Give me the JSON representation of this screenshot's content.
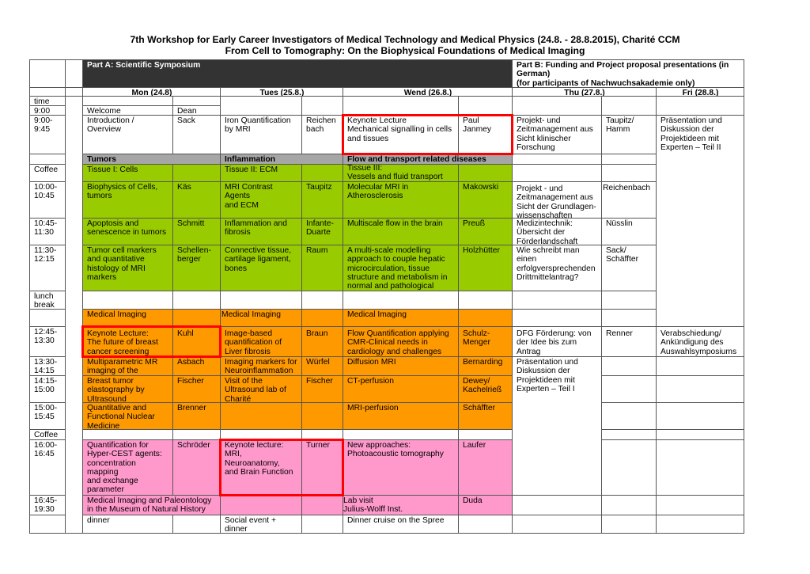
{
  "title": {
    "line1": "7th Workshop for Early Career Investigators of Medical Technology and Medical Physics (24.8. - 28.8.2015), Charité CCM",
    "line2": "From Cell to Tomography: On the Biophysical Foundations of Medical Imaging"
  },
  "partA": "Part A: Scientific Symposium",
  "partB": "Part B: Funding and Project proposal presentations (in German)\n(for participants of Nachwuchsakademie only)",
  "days": {
    "mon": "Mon (24.8)",
    "tue": "Tues (25.8.)",
    "wed": "Wend (26.8.)",
    "thu": "Thu (27.8.)",
    "fri": "Fri (28.8.)"
  },
  "times": [
    "time",
    "9:00",
    "9:00-\n9:45",
    "",
    "Coffee",
    "10:00-\n10:45",
    "10:45-\n11:30",
    "11:30-\n12:15",
    "lunch\nbreak",
    "",
    "12:45-\n13:30",
    "13:30-\n14:15",
    "14:15-\n15:00",
    "15:00-\n15:45",
    "Coffee",
    "16:00-\n16:45",
    "16:45-\n19:30",
    ""
  ],
  "mon": {
    "welcome": {
      "title": "Welcome",
      "speaker": "Dean"
    },
    "intro": {
      "title": "Introduction / Overview",
      "speaker": "Sack"
    },
    "theme": "Tumors",
    "tissue": "Tissue I: Cells",
    "s1": {
      "title": "Biophysics of Cells,\ntumors",
      "speaker": "Käs"
    },
    "s2": {
      "title": "Apoptosis and\nsenescence in tumors",
      "speaker": "Schmitt"
    },
    "s3": {
      "title": "Tumor cell markers\nand quantitative\nhistology of MRI\nmarkers",
      "speaker": "Schellen-\nberger"
    },
    "imaging": "Medical Imaging",
    "s4": {
      "title": "Keynote Lecture:\nThe future of breast\ncancer screening",
      "speaker": "Kuhl"
    },
    "s5": {
      "title": "Multiparametric MR\nimaging of the prostate",
      "speaker": "Asbach"
    },
    "s6": {
      "title": "Breast tumor\nelastography by\nUltrasound",
      "speaker": "Fischer"
    },
    "s7": {
      "title": "Quantitative and\nFunctional Nuclear\nMedicine",
      "speaker": "Brenner"
    },
    "s8": {
      "title": "Quantification for\nHyper-CEST agents:\nconcentration mapping\nand exchange\nparameter\ncharacterization",
      "speaker": "Schröder"
    },
    "s9": "Medical Imaging and Paleontology\nin the Museum of Natural History",
    "dinner": "dinner"
  },
  "tue": {
    "intro": {
      "title": "Iron Quantification\nby MRI",
      "speaker": "Reichen\nbach"
    },
    "theme": "Inflammation",
    "tissue": "Tissue II: ECM",
    "s1": {
      "title": "MRI Contrast Agents\nand ECM",
      "speaker": "Taupitz"
    },
    "s2": {
      "title": "Inflammation and\nfibrosis",
      "speaker": "Infante-\nDuarte"
    },
    "s3": {
      "title": "Connective tissue,\ncartilage ligament,\nbones",
      "speaker": "Raum"
    },
    "imaging": "Medical Imaging",
    "s4": {
      "title": "Image-based\nquantification of\nLiver fibrosis",
      "speaker": "Braun"
    },
    "s5": {
      "title": "Imaging markers for\nNeuroinflammation",
      "speaker": "Würfel"
    },
    "s6": {
      "title": "Visit of the\nUltrasound lab of\nCharité",
      "speaker": "Fischer"
    },
    "s8": {
      "title": "Keynote lecture:\nMRI, Neuroanatomy,\nand Brain Function",
      "speaker": "Turner"
    },
    "dinner": "Social event +\ndinner"
  },
  "wed": {
    "intro": {
      "title": "Keynote Lecture\nMechanical signalling in cells\nand tissues",
      "speaker": "Paul\nJanmey"
    },
    "theme": "Flow and transport related diseases",
    "tissue": "Tissue III:\nVessels and fluid transport",
    "s1": {
      "title": "Molecular MRI in\nAtherosclerosis",
      "speaker": "Makowski"
    },
    "s2": {
      "title": "Multiscale flow in the brain",
      "speaker": "Preuß"
    },
    "s3": {
      "title": "A multi-scale modelling\napproach to couple hepatic\nmicrocirculation, tissue\nstructure and metabolism in\nnormal and pathological states",
      "speaker": "Holzhütter"
    },
    "imaging": "Medical Imaging",
    "s4": {
      "title": "Flow Quantification applying\nCMR-Clinical needs in\ncardiology and challenges",
      "speaker": "Schulz-\nMenger"
    },
    "s5": {
      "title": "Diffusion MRI",
      "speaker": "Bernarding"
    },
    "s6": {
      "title": "CT-perfusion",
      "speaker": "Dewey/\nKachelrieß"
    },
    "s7": {
      "title": "MRI-perfusion",
      "speaker": "Schäffter"
    },
    "s8": {
      "title": "New approaches:\nPhotoacoustic tomography",
      "speaker": "Laufer"
    },
    "s9": {
      "title": "Lab visit\nJulius-Wolff Inst.",
      "speaker": "Duda"
    },
    "dinner": "Dinner cruise on the Spree"
  },
  "thu": {
    "s0": {
      "title": "Projekt- und\nZeitmanagement aus\nSicht klinischer\nForschung",
      "speaker": "Taupitz/\nHamm"
    },
    "s1": {
      "title": "Projekt - und\nZeitmanagement  aus\nSicht der Grundlagen-\nwissenschaften",
      "speaker": "Reichenbach"
    },
    "s2": {
      "title": "Medizintechnik:\nÜbersicht der\nFörderlandschaft",
      "speaker": "Nüsslin"
    },
    "s3": {
      "title": "Wie schreibt man\neinen\nerfolgversprechenden\nDrittmittelantrag?",
      "speaker": "Sack/\nSchäffter"
    },
    "s4": {
      "title": "DFG Förderung: von\nder Idee bis zum\nAntrag",
      "speaker": "Renner"
    },
    "s5": "Präsentation und\nDiskussion der\nProjektideen mit\nExperten – Teil I"
  },
  "fri": {
    "s0": "Präsentation und\nDiskussion der\nProjektideen mit\nExperten – Teil II",
    "s4": "Verabschiedung/\nAnkündigung des\nAuswahlsymposiums"
  },
  "colors": {
    "header": "#333333",
    "theme": "#a6a6a6",
    "morning": "#99cc00",
    "afternoon": "#ff9900",
    "late": "#ff99cc",
    "keynote_border": "#ff0000"
  }
}
